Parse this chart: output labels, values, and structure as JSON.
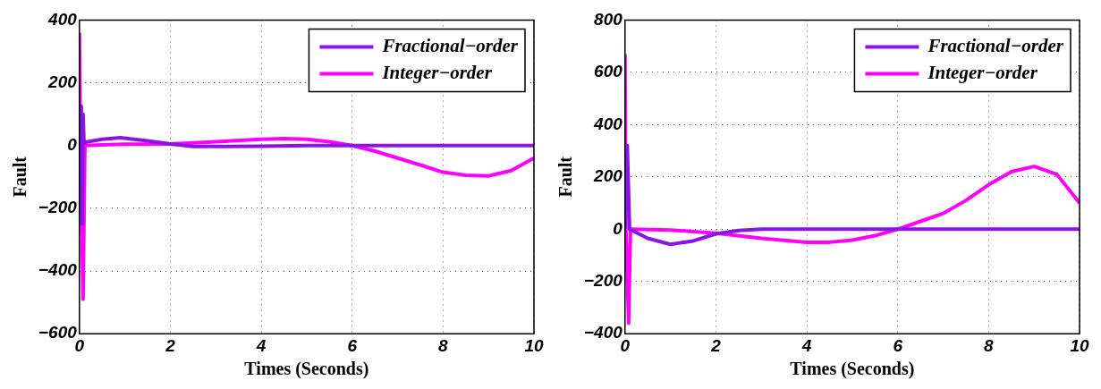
{
  "chart_data": [
    {
      "type": "line",
      "xlabel": "Times (Seconds)",
      "ylabel": "Fault",
      "xlim": [
        0,
        10
      ],
      "xticks": [
        0,
        2,
        4,
        6,
        8,
        10
      ],
      "ylim": [
        -600,
        400
      ],
      "yticks": [
        -600,
        -400,
        -200,
        0,
        200,
        400
      ],
      "grid": true,
      "legend": "top right",
      "line_style": "solid",
      "series": [
        {
          "name": "Fractional−order",
          "color": "#8a14e6",
          "x": [
            0,
            0.04,
            0.06,
            0.08,
            0.1,
            0.5,
            0.9,
            1.5,
            2,
            2.5,
            3,
            4,
            5,
            6,
            7,
            8,
            9,
            10
          ],
          "values": [
            0,
            125,
            -250,
            100,
            10,
            20,
            25,
            15,
            5,
            -3,
            -3,
            -2,
            0,
            0,
            0,
            0,
            0,
            0
          ]
        },
        {
          "name": "Integer−order",
          "color": "#ff00ff",
          "x": [
            0,
            0.02,
            0.08,
            0.12,
            0.5,
            1,
            2,
            3,
            4,
            4.5,
            5,
            5.5,
            6,
            6.5,
            7,
            7.5,
            8,
            8.5,
            9,
            9.5,
            10
          ],
          "values": [
            360,
            0,
            -490,
            0,
            2,
            4,
            5,
            12,
            20,
            22,
            20,
            12,
            0,
            -18,
            -40,
            -62,
            -85,
            -95,
            -97,
            -80,
            -40
          ]
        }
      ]
    },
    {
      "type": "line",
      "xlabel": "Times (Seconds)",
      "ylabel": "Fault",
      "xlim": [
        0,
        10
      ],
      "xticks": [
        0,
        2,
        4,
        6,
        8,
        10
      ],
      "ylim": [
        -400,
        800
      ],
      "yticks": [
        -400,
        -200,
        0,
        200,
        400,
        600,
        800
      ],
      "grid": true,
      "legend": "top right",
      "line_style": "solid",
      "series": [
        {
          "name": "Fractional−order",
          "color": "#8a14e6",
          "x": [
            0,
            0.05,
            0.1,
            0.5,
            1,
            1.5,
            2,
            2.5,
            3,
            4,
            5,
            6,
            7,
            8,
            9,
            10
          ],
          "values": [
            0,
            320,
            0,
            -35,
            -58,
            -45,
            -18,
            -5,
            0,
            0,
            0,
            0,
            0,
            0,
            0,
            0
          ]
        },
        {
          "name": "Integer−order",
          "color": "#ff00ff",
          "x": [
            0,
            0.02,
            0.08,
            0.12,
            1,
            2,
            3,
            4,
            4.5,
            5,
            5.5,
            6,
            6.5,
            7,
            7.5,
            8,
            8.5,
            9,
            9.5,
            10
          ],
          "values": [
            670,
            0,
            -360,
            0,
            -3,
            -15,
            -35,
            -50,
            -50,
            -42,
            -25,
            0,
            30,
            60,
            110,
            170,
            220,
            240,
            210,
            100
          ]
        }
      ]
    }
  ]
}
